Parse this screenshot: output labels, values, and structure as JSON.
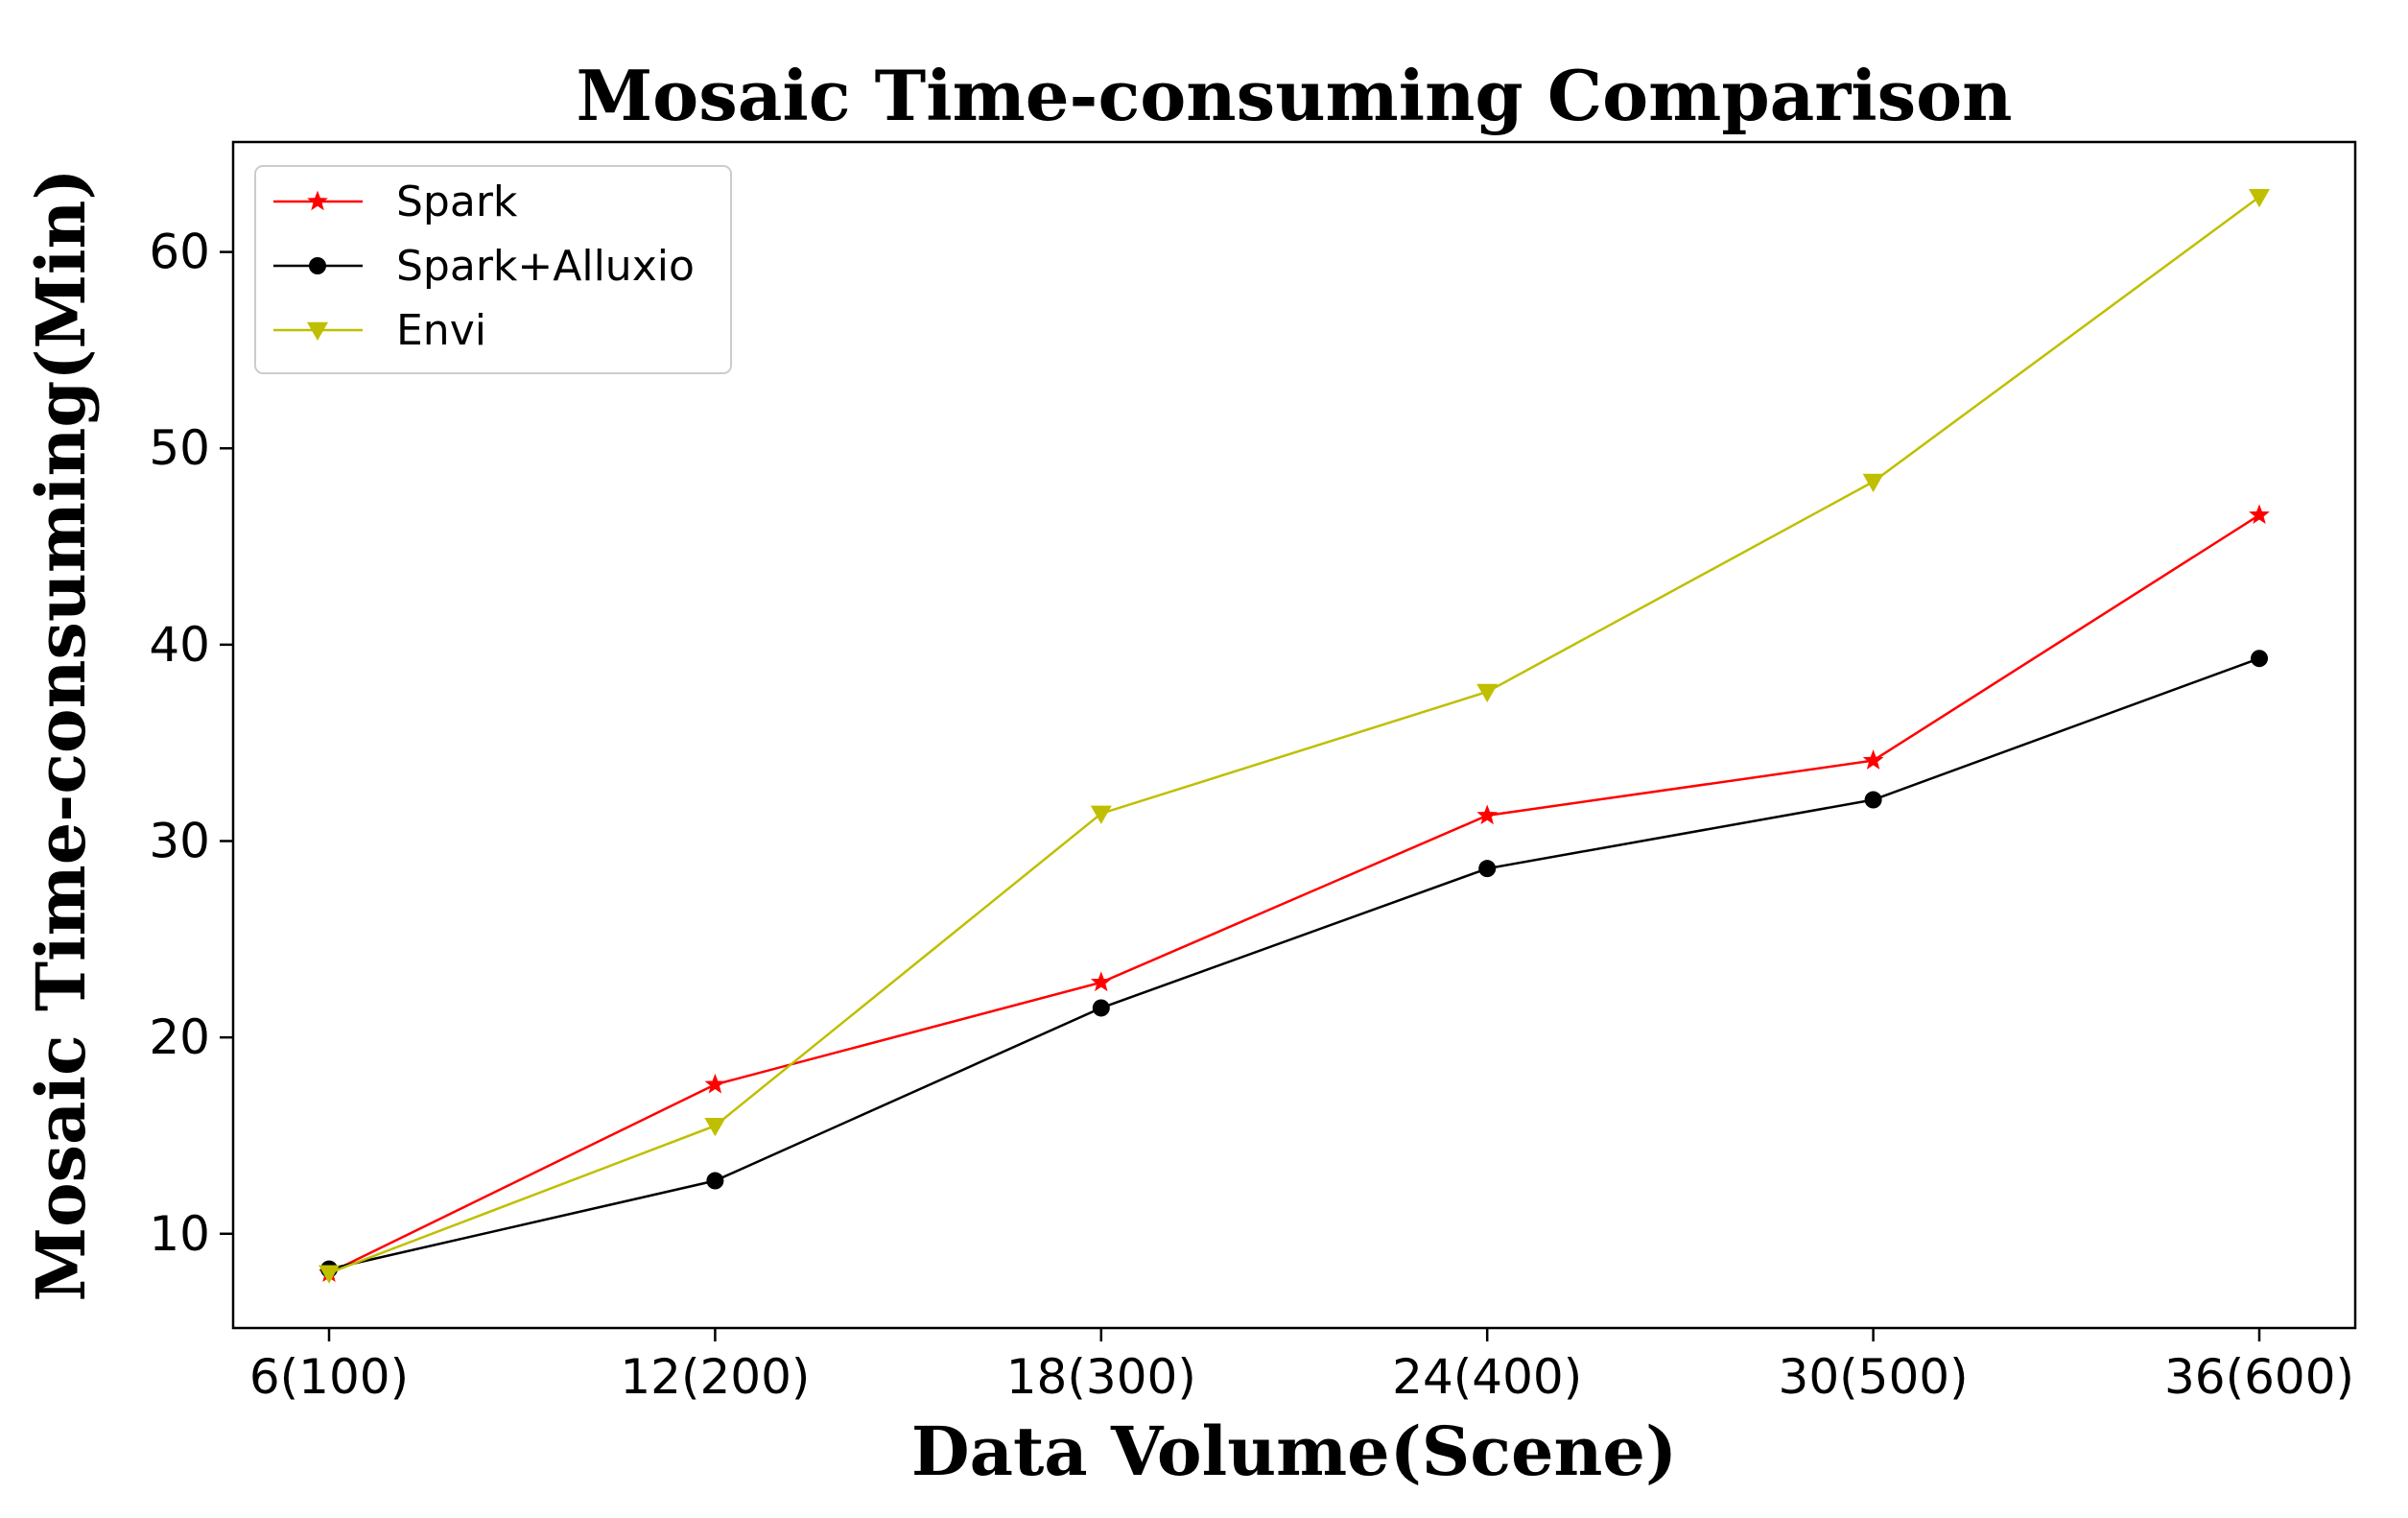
{
  "chart_data": {
    "type": "line",
    "title": "Mosaic Time-consuming Comparison",
    "xlabel": "Data Volume(Scene)",
    "ylabel": "Mosaic Time-consuming(Min)",
    "categories": [
      "6(100)",
      "12(200)",
      "18(300)",
      "24(400)",
      "30(500)",
      "36(600)"
    ],
    "ylim": [
      5.2,
      65.6
    ],
    "yticks": [
      10,
      20,
      30,
      40,
      50,
      60
    ],
    "grid": false,
    "legend_position": "upper-left",
    "series": [
      {
        "name": "Spark",
        "values": [
          8.0,
          17.6,
          22.8,
          31.3,
          34.1,
          46.6
        ],
        "color": "#ff0000",
        "marker": "star"
      },
      {
        "name": "Spark+Alluxio",
        "values": [
          8.2,
          12.7,
          21.5,
          28.6,
          32.1,
          39.3
        ],
        "color": "#000000",
        "marker": "circle"
      },
      {
        "name": "Envi",
        "values": [
          8.0,
          15.5,
          31.4,
          37.6,
          48.3,
          62.8
        ],
        "color": "#bfbf00",
        "marker": "triangle-down"
      }
    ]
  }
}
